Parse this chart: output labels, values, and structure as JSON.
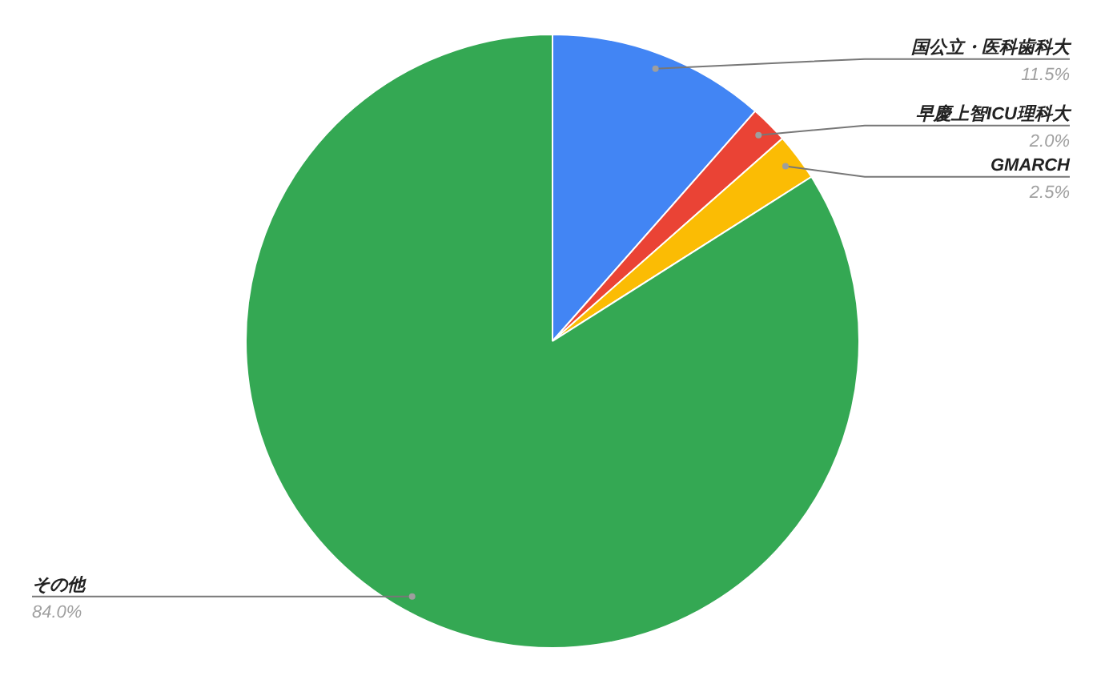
{
  "chart_data": {
    "type": "pie",
    "categories": [
      "国公立・医科歯科大",
      "早慶上智ICU理科大",
      "GMARCH",
      "その他"
    ],
    "values": [
      11.5,
      2.0,
      2.5,
      84.0
    ],
    "colors": [
      "#4285f4",
      "#ea4335",
      "#fbbc04",
      "#34a853"
    ],
    "value_labels": [
      "11.5%",
      "2.0%",
      "2.5%",
      "84.0%"
    ],
    "legend": false
  }
}
